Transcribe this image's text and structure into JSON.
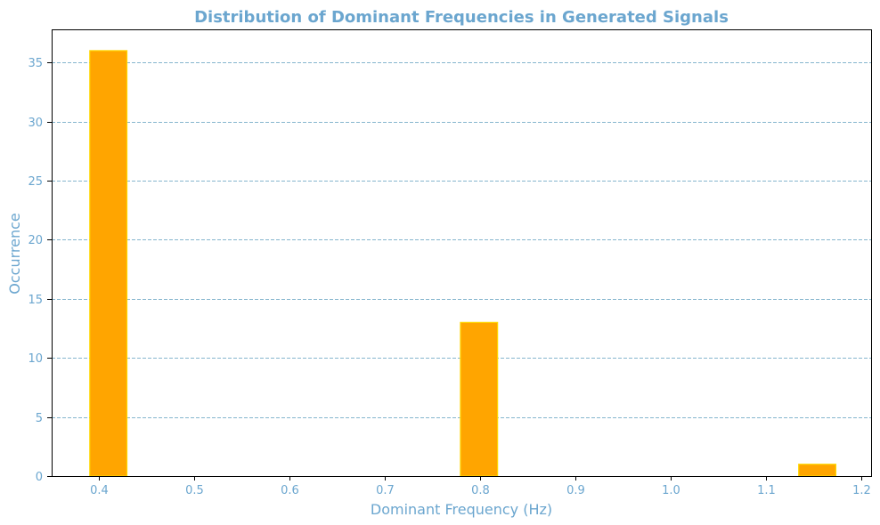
{
  "chart_data": {
    "type": "bar",
    "title": "Distribution of Dominant Frequencies in Generated Signals",
    "xlabel": "Dominant Frequency (Hz)",
    "ylabel": "Occurrence",
    "xlim": [
      0.35,
      1.21
    ],
    "ylim": [
      0,
      37.8
    ],
    "xticks": [
      0.4,
      0.5,
      0.6,
      0.7,
      0.8,
      0.9,
      1.0,
      1.1,
      1.2
    ],
    "xtick_labels": [
      "0.4",
      "0.5",
      "0.6",
      "0.7",
      "0.8",
      "0.9",
      "1.0",
      "1.1",
      "1.2"
    ],
    "yticks": [
      0,
      5,
      10,
      15,
      20,
      25,
      30,
      35
    ],
    "ytick_labels": [
      "0",
      "5",
      "10",
      "15",
      "20",
      "25",
      "30",
      "35"
    ],
    "grid": "horizontal dashed",
    "bins": [
      {
        "start": 0.39,
        "end": 0.429,
        "count": 36
      },
      {
        "start": 0.779,
        "end": 0.818,
        "count": 13
      },
      {
        "start": 1.134,
        "end": 1.173,
        "count": 1
      }
    ],
    "colors": {
      "bar_fill": "#FFA500",
      "bar_edge": "#FFD700",
      "text": "#6BA6CF",
      "grid": "#5F9EBF",
      "spine": "#000000"
    }
  }
}
